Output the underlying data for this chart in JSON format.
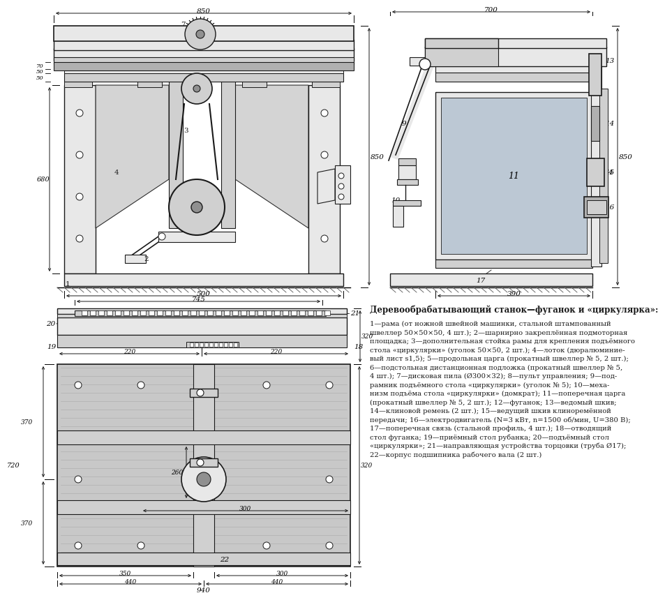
{
  "bg_color": "#ffffff",
  "lc": "#1a1a1a",
  "gray1": "#b0b0b0",
  "gray2": "#d0d0d0",
  "gray3": "#e8e8e8",
  "gray4": "#909090",
  "gray5": "#c8c8c8",
  "blue_gray": "#c0ccd8",
  "title": "Деревообрабатывающий станок—фуганок и «циркулярка»:",
  "desc_lines": [
    "1—рама (от ножной швейной машинки, стальной штампованный",
    "швеллер 50×50×50, 4 шт.); 2—шарнирно закреплённая подмоторная",
    "площадка; 3—дополнительная стойка рамы для крепления подъёмного",
    "стола «циркулярки» (уголок 50×50, 2 шт.); 4—лоток (дюралюминие-",
    "вый лист s1,5); 5—продольная царга (прокатный швеллер № 5, 2 шт.);",
    "6—подстольная дистанционная подложка (прокатный швеллер № 5,",
    "4 шт.); 7—дисковая пила (Ø300×32); 8—пульт управления; 9—под-",
    "рамник подъёмного стола «циркулярки» (уголок № 5); 10—меха-",
    "низм подъёма стола «циркулярки» (домкрат); 11—поперечная царга",
    "(прокатный швеллер № 5, 2 шт.); 12—фуганок; 13—ведомый шкив;",
    "14—клиновой ремень (2 шт.); 15—ведущий шкив клиноремённой",
    "передачи; 16—электродвигатель (N=3 кВт, n=1500 об/мин, U=380 В);",
    "17—поперечная связь (стальной профиль, 4 шт.); 18—отводящий",
    "стол фуганка; 19—приёмный стол рубанка; 20—подъёмный стол",
    "«циркулярки»; 21—направляющая устройства торцовки (труба Ø17);",
    "22—корпус подшипника рабочего вала (2 шт.)"
  ]
}
